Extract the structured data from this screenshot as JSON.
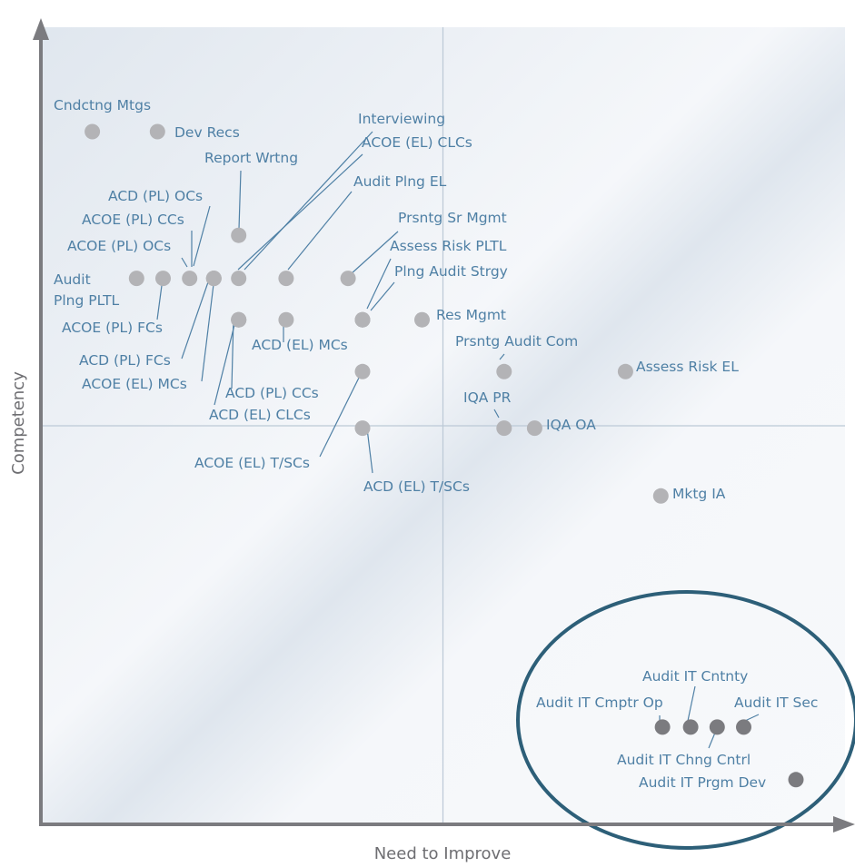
{
  "chart_data": {
    "type": "scatter",
    "title": "",
    "xlabel": "Need to Improve",
    "ylabel": "Competency",
    "xlim": [
      0,
      100
    ],
    "ylim": [
      0,
      100
    ],
    "grid": false,
    "quadrant_dividers": {
      "x": 50,
      "y": 50
    },
    "highlight_group": "Audit IT",
    "colors": {
      "point": "#b3b3b6",
      "point_highlight": "#7b7b7f",
      "label": "#4f80a5",
      "axis": "#7b7b7f",
      "plot_bg": "#f4f6f9",
      "band": "#dfe6ee",
      "ellipse": "#2d5f78",
      "divider": "#bcc9d6"
    },
    "points": [
      {
        "label": "Cndctng Mtgs",
        "x": 6.4,
        "y": 86.9
      },
      {
        "label": "Dev Recs",
        "x": 14.5,
        "y": 86.9
      },
      {
        "label": "Interviewing",
        "x": 24.6,
        "y": 68.5
      },
      {
        "label": "ACOE (EL) CLCs",
        "x": 24.6,
        "y": 63.3
      },
      {
        "label": "Report Wrtng",
        "x": 24.6,
        "y": 73.9
      },
      {
        "label": "Audit Plng EL",
        "x": 30.5,
        "y": 68.5
      },
      {
        "label": "ACD (PL) OCs",
        "x": 21.5,
        "y": 68.5
      },
      {
        "label": "ACOE (PL) CCs",
        "x": 18.5,
        "y": 68.5
      },
      {
        "label": "ACOE (PL) OCs",
        "x": 15.2,
        "y": 68.5
      },
      {
        "label": "Audit Plng PLTL",
        "x": 11.9,
        "y": 68.5
      },
      {
        "label": "ACOE (PL) FCs",
        "x": 21.5,
        "y": 68.5
      },
      {
        "label": "ACD (PL) FCs",
        "x": 21.5,
        "y": 68.5
      },
      {
        "label": "ACOE (EL) MCs",
        "x": 24.6,
        "y": 63.3
      },
      {
        "label": "ACD (PL) CCs",
        "x": 24.6,
        "y": 63.3
      },
      {
        "label": "ACD (EL) CLCs",
        "x": 30.5,
        "y": 63.3
      },
      {
        "label": "ACD (EL) MCs",
        "x": 40.0,
        "y": 63.3
      },
      {
        "label": "Prsntg Sr Mgmt",
        "x": 38.2,
        "y": 68.5
      },
      {
        "label": "Assess Risk PLTL",
        "x": 40.0,
        "y": 63.3
      },
      {
        "label": "Plng Audit Strgy",
        "x": 40.0,
        "y": 63.3
      },
      {
        "label": "Res Mgmt",
        "x": 47.4,
        "y": 63.3
      },
      {
        "label": "Prsntg Audit Com",
        "x": 57.6,
        "y": 56.8
      },
      {
        "label": "Assess Risk EL",
        "x": 72.7,
        "y": 56.8
      },
      {
        "label": "IQA PR",
        "x": 57.6,
        "y": 49.7
      },
      {
        "label": "IQA OA",
        "x": 61.4,
        "y": 49.7
      },
      {
        "label": "ACOE (EL) T/SCs",
        "x": 40.0,
        "y": 56.8
      },
      {
        "label": "ACD (EL) T/SCs",
        "x": 40.0,
        "y": 49.7
      },
      {
        "label": "Mktg IA",
        "x": 77.1,
        "y": 41.2
      },
      {
        "label": "Audit IT Cmptr Op",
        "x": 77.3,
        "y": 12.2
      },
      {
        "label": "Audit IT Cntnty",
        "x": 80.8,
        "y": 12.2
      },
      {
        "label": "Audit IT Chng Cntrl",
        "x": 84.1,
        "y": 12.2
      },
      {
        "label": "Audit IT Sec",
        "x": 87.4,
        "y": 12.2
      },
      {
        "label": "Audit IT Prgm Dev",
        "x": 93.9,
        "y": 5.6
      }
    ]
  }
}
